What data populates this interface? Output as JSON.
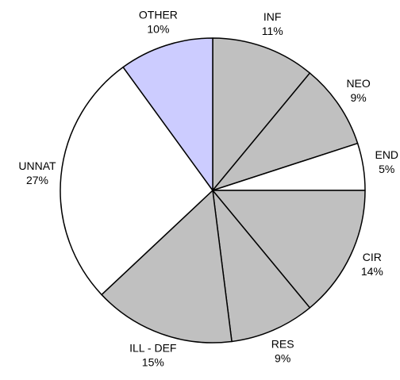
{
  "chart_data": {
    "type": "pie",
    "categories": [
      "INF",
      "NEO",
      "END",
      "CIR",
      "RES",
      "ILL - DEF",
      "UNNAT",
      "OTHER"
    ],
    "values": [
      11,
      9,
      5,
      14,
      9,
      15,
      27,
      10
    ],
    "value_labels": [
      "11%",
      "9%",
      "5%",
      "14%",
      "9%",
      "15%",
      "27%",
      "10%"
    ],
    "colors": [
      "#c0c0c0",
      "#c0c0c0",
      "#ffffff",
      "#c0c0c0",
      "#c0c0c0",
      "#c0c0c0",
      "#ffffff",
      "#ccccff"
    ]
  }
}
